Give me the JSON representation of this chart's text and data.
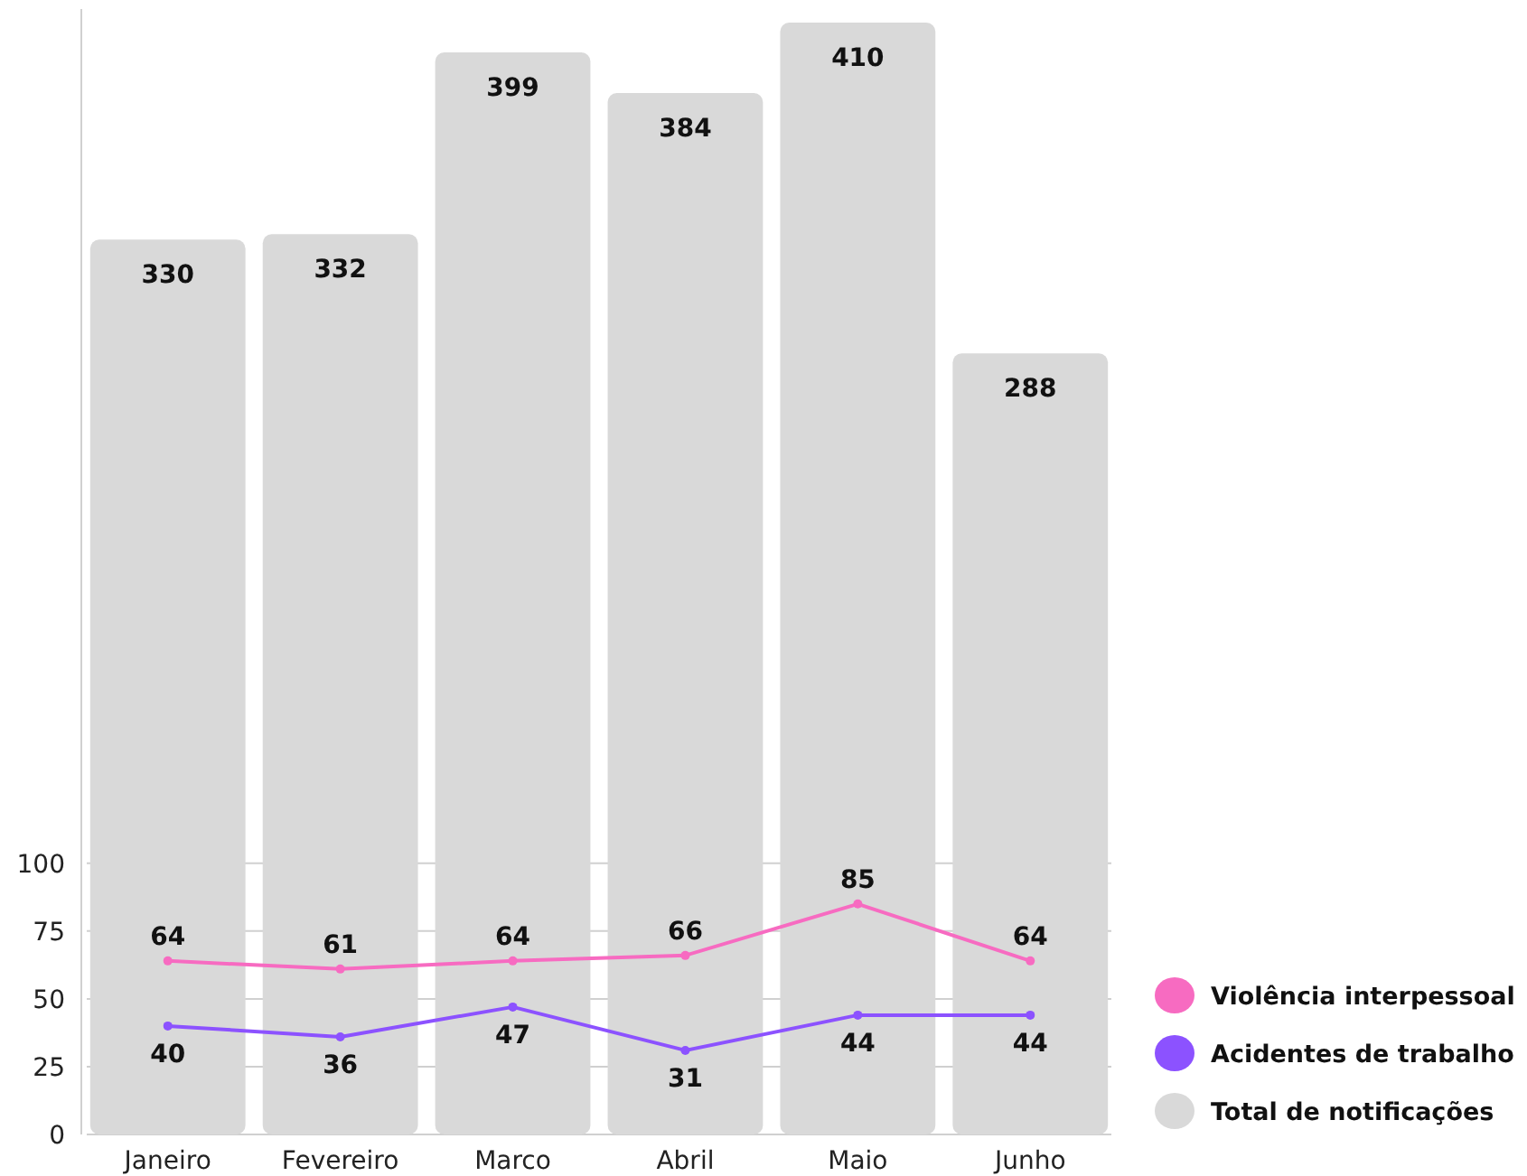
{
  "chart_data": {
    "type": "bar",
    "categories": [
      "Janeiro",
      "Fevereiro",
      "Marco",
      "Abril",
      "Maio",
      "Junho"
    ],
    "series": [
      {
        "name": "Violência interpessoal",
        "type": "line",
        "color": "#f76bc1",
        "values": [
          64,
          61,
          64,
          66,
          85,
          64
        ]
      },
      {
        "name": "Acidentes de trabalho",
        "type": "line",
        "color": "#8c52ff",
        "values": [
          40,
          36,
          47,
          31,
          44,
          44
        ]
      },
      {
        "name": "Total de notificações",
        "color": "#d9d9d9",
        "values": [
          330,
          332,
          399,
          384,
          410,
          288
        ]
      }
    ],
    "ylim": [
      0,
      415
    ],
    "yticks": [
      0,
      25,
      50,
      75,
      100
    ],
    "grid": "y",
    "legend": "bottom right",
    "marker": "circle",
    "data_labels": true
  }
}
